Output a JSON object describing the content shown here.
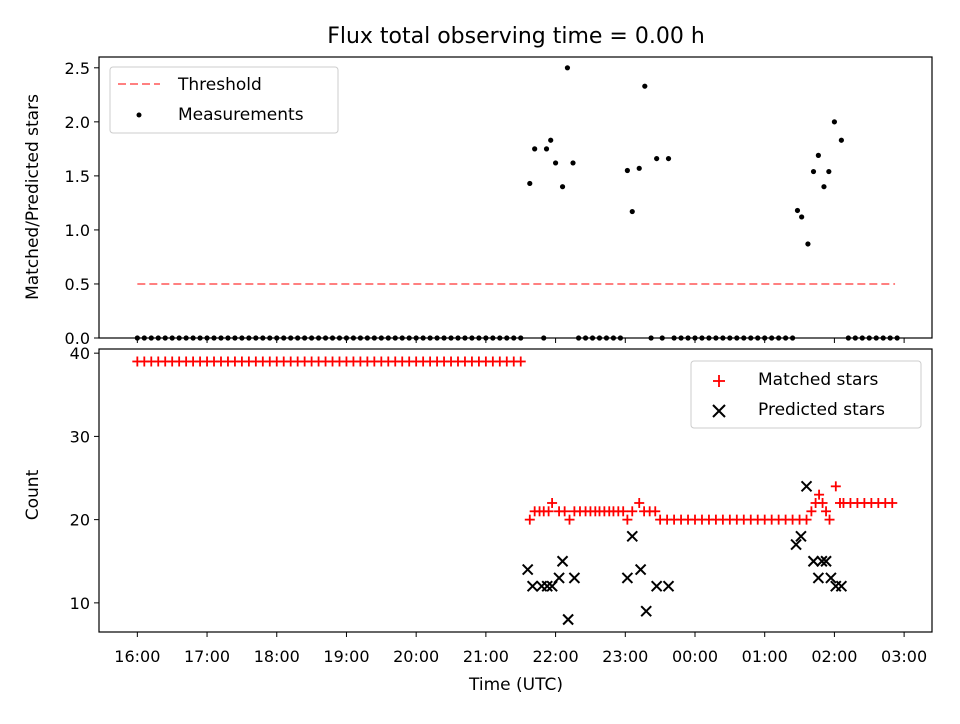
{
  "title": "Flux total observing time = 0.00 h",
  "x_axis": {
    "label": "Time (UTC)",
    "tick_labels": [
      "16:00",
      "17:00",
      "18:00",
      "19:00",
      "20:00",
      "21:00",
      "22:00",
      "23:00",
      "00:00",
      "01:00",
      "02:00",
      "03:00"
    ]
  },
  "colors": {
    "threshold": "#ff8080",
    "measurements": "#000000",
    "matched": "#ff0000",
    "predicted": "#000000"
  },
  "chart_data": [
    {
      "type": "scatter",
      "ylabel": "Matched/Predicted stars",
      "ylim": [
        0,
        2.6
      ],
      "yticks": [
        "0.0",
        "0.5",
        "1.0",
        "1.5",
        "2.0",
        "2.5"
      ],
      "xlim_hours": [
        15.45,
        27.4
      ],
      "grid": false,
      "legend_position": "top-left",
      "series": [
        {
          "name": "Threshold",
          "kind": "dashed-line",
          "x": [
            16.0,
            26.87
          ],
          "y": [
            0.5,
            0.5
          ]
        },
        {
          "name": "Measurements",
          "kind": "points",
          "x_zero_runs": [
            [
              16.0,
              21.53,
              0.1
            ],
            [
              21.83,
              21.83,
              0.1
            ],
            [
              22.33,
              22.97,
              0.1
            ],
            [
              23.37,
              23.37,
              0.1
            ],
            [
              23.53,
              23.53,
              0.1
            ],
            [
              23.7,
              25.4,
              0.1
            ],
            [
              26.2,
              26.87,
              0.1
            ]
          ],
          "points": [
            [
              21.63,
              1.43
            ],
            [
              21.7,
              1.75
            ],
            [
              21.87,
              1.75
            ],
            [
              21.93,
              1.83
            ],
            [
              22.0,
              1.62
            ],
            [
              22.1,
              1.4
            ],
            [
              22.17,
              2.5
            ],
            [
              22.25,
              1.62
            ],
            [
              23.03,
              1.55
            ],
            [
              23.1,
              1.17
            ],
            [
              23.2,
              1.57
            ],
            [
              23.28,
              2.33
            ],
            [
              23.45,
              1.66
            ],
            [
              23.62,
              1.66
            ],
            [
              25.47,
              1.18
            ],
            [
              25.53,
              1.12
            ],
            [
              25.62,
              0.87
            ],
            [
              25.7,
              1.54
            ],
            [
              25.77,
              1.69
            ],
            [
              25.85,
              1.4
            ],
            [
              25.92,
              1.54
            ],
            [
              26.0,
              2.0
            ],
            [
              26.1,
              1.83
            ]
          ]
        }
      ]
    },
    {
      "type": "scatter",
      "ylabel": "Count",
      "ylim": [
        6.5,
        40.5
      ],
      "yticks": [
        "10",
        "20",
        "30",
        "40"
      ],
      "xlim_hours": [
        15.45,
        27.4
      ],
      "grid": false,
      "legend_position": "top-right",
      "series": [
        {
          "name": "Matched stars",
          "marker": "plus",
          "runs": [
            [
              16.0,
              21.53,
              0.1,
              39
            ],
            [
              23.6,
              25.6,
              0.1,
              20
            ],
            [
              26.13,
              26.87,
              0.1,
              22
            ]
          ],
          "points": [
            [
              21.63,
              20
            ],
            [
              21.7,
              21
            ],
            [
              21.77,
              21
            ],
            [
              21.83,
              21
            ],
            [
              21.9,
              21
            ],
            [
              21.95,
              22
            ],
            [
              22.05,
              21
            ],
            [
              22.13,
              21
            ],
            [
              22.2,
              20
            ],
            [
              22.27,
              21
            ],
            [
              22.35,
              21
            ],
            [
              22.43,
              21
            ],
            [
              22.5,
              21
            ],
            [
              22.57,
              21
            ],
            [
              22.63,
              21
            ],
            [
              22.7,
              21
            ],
            [
              22.77,
              21
            ],
            [
              22.83,
              21
            ],
            [
              22.9,
              21
            ],
            [
              22.97,
              21
            ],
            [
              23.03,
              20
            ],
            [
              23.1,
              21
            ],
            [
              23.2,
              22
            ],
            [
              23.27,
              21
            ],
            [
              23.35,
              21
            ],
            [
              23.43,
              21
            ],
            [
              23.5,
              20
            ],
            [
              25.67,
              21
            ],
            [
              25.73,
              22
            ],
            [
              25.78,
              23
            ],
            [
              25.83,
              22
            ],
            [
              25.88,
              21
            ],
            [
              25.93,
              20
            ],
            [
              26.02,
              24
            ],
            [
              26.08,
              22
            ]
          ]
        },
        {
          "name": "Predicted stars",
          "marker": "x",
          "points": [
            [
              21.6,
              14
            ],
            [
              21.67,
              12
            ],
            [
              21.8,
              12
            ],
            [
              21.88,
              12
            ],
            [
              21.95,
              12
            ],
            [
              22.05,
              13
            ],
            [
              22.1,
              15
            ],
            [
              22.18,
              8
            ],
            [
              22.27,
              13
            ],
            [
              23.03,
              13
            ],
            [
              23.1,
              18
            ],
            [
              23.22,
              14
            ],
            [
              23.3,
              9
            ],
            [
              23.45,
              12
            ],
            [
              23.62,
              12
            ],
            [
              25.45,
              17
            ],
            [
              25.52,
              18
            ],
            [
              25.6,
              24
            ],
            [
              25.7,
              15
            ],
            [
              25.77,
              13
            ],
            [
              25.82,
              15
            ],
            [
              25.88,
              15
            ],
            [
              25.95,
              13
            ],
            [
              26.02,
              12
            ],
            [
              26.1,
              12
            ]
          ]
        }
      ]
    }
  ]
}
